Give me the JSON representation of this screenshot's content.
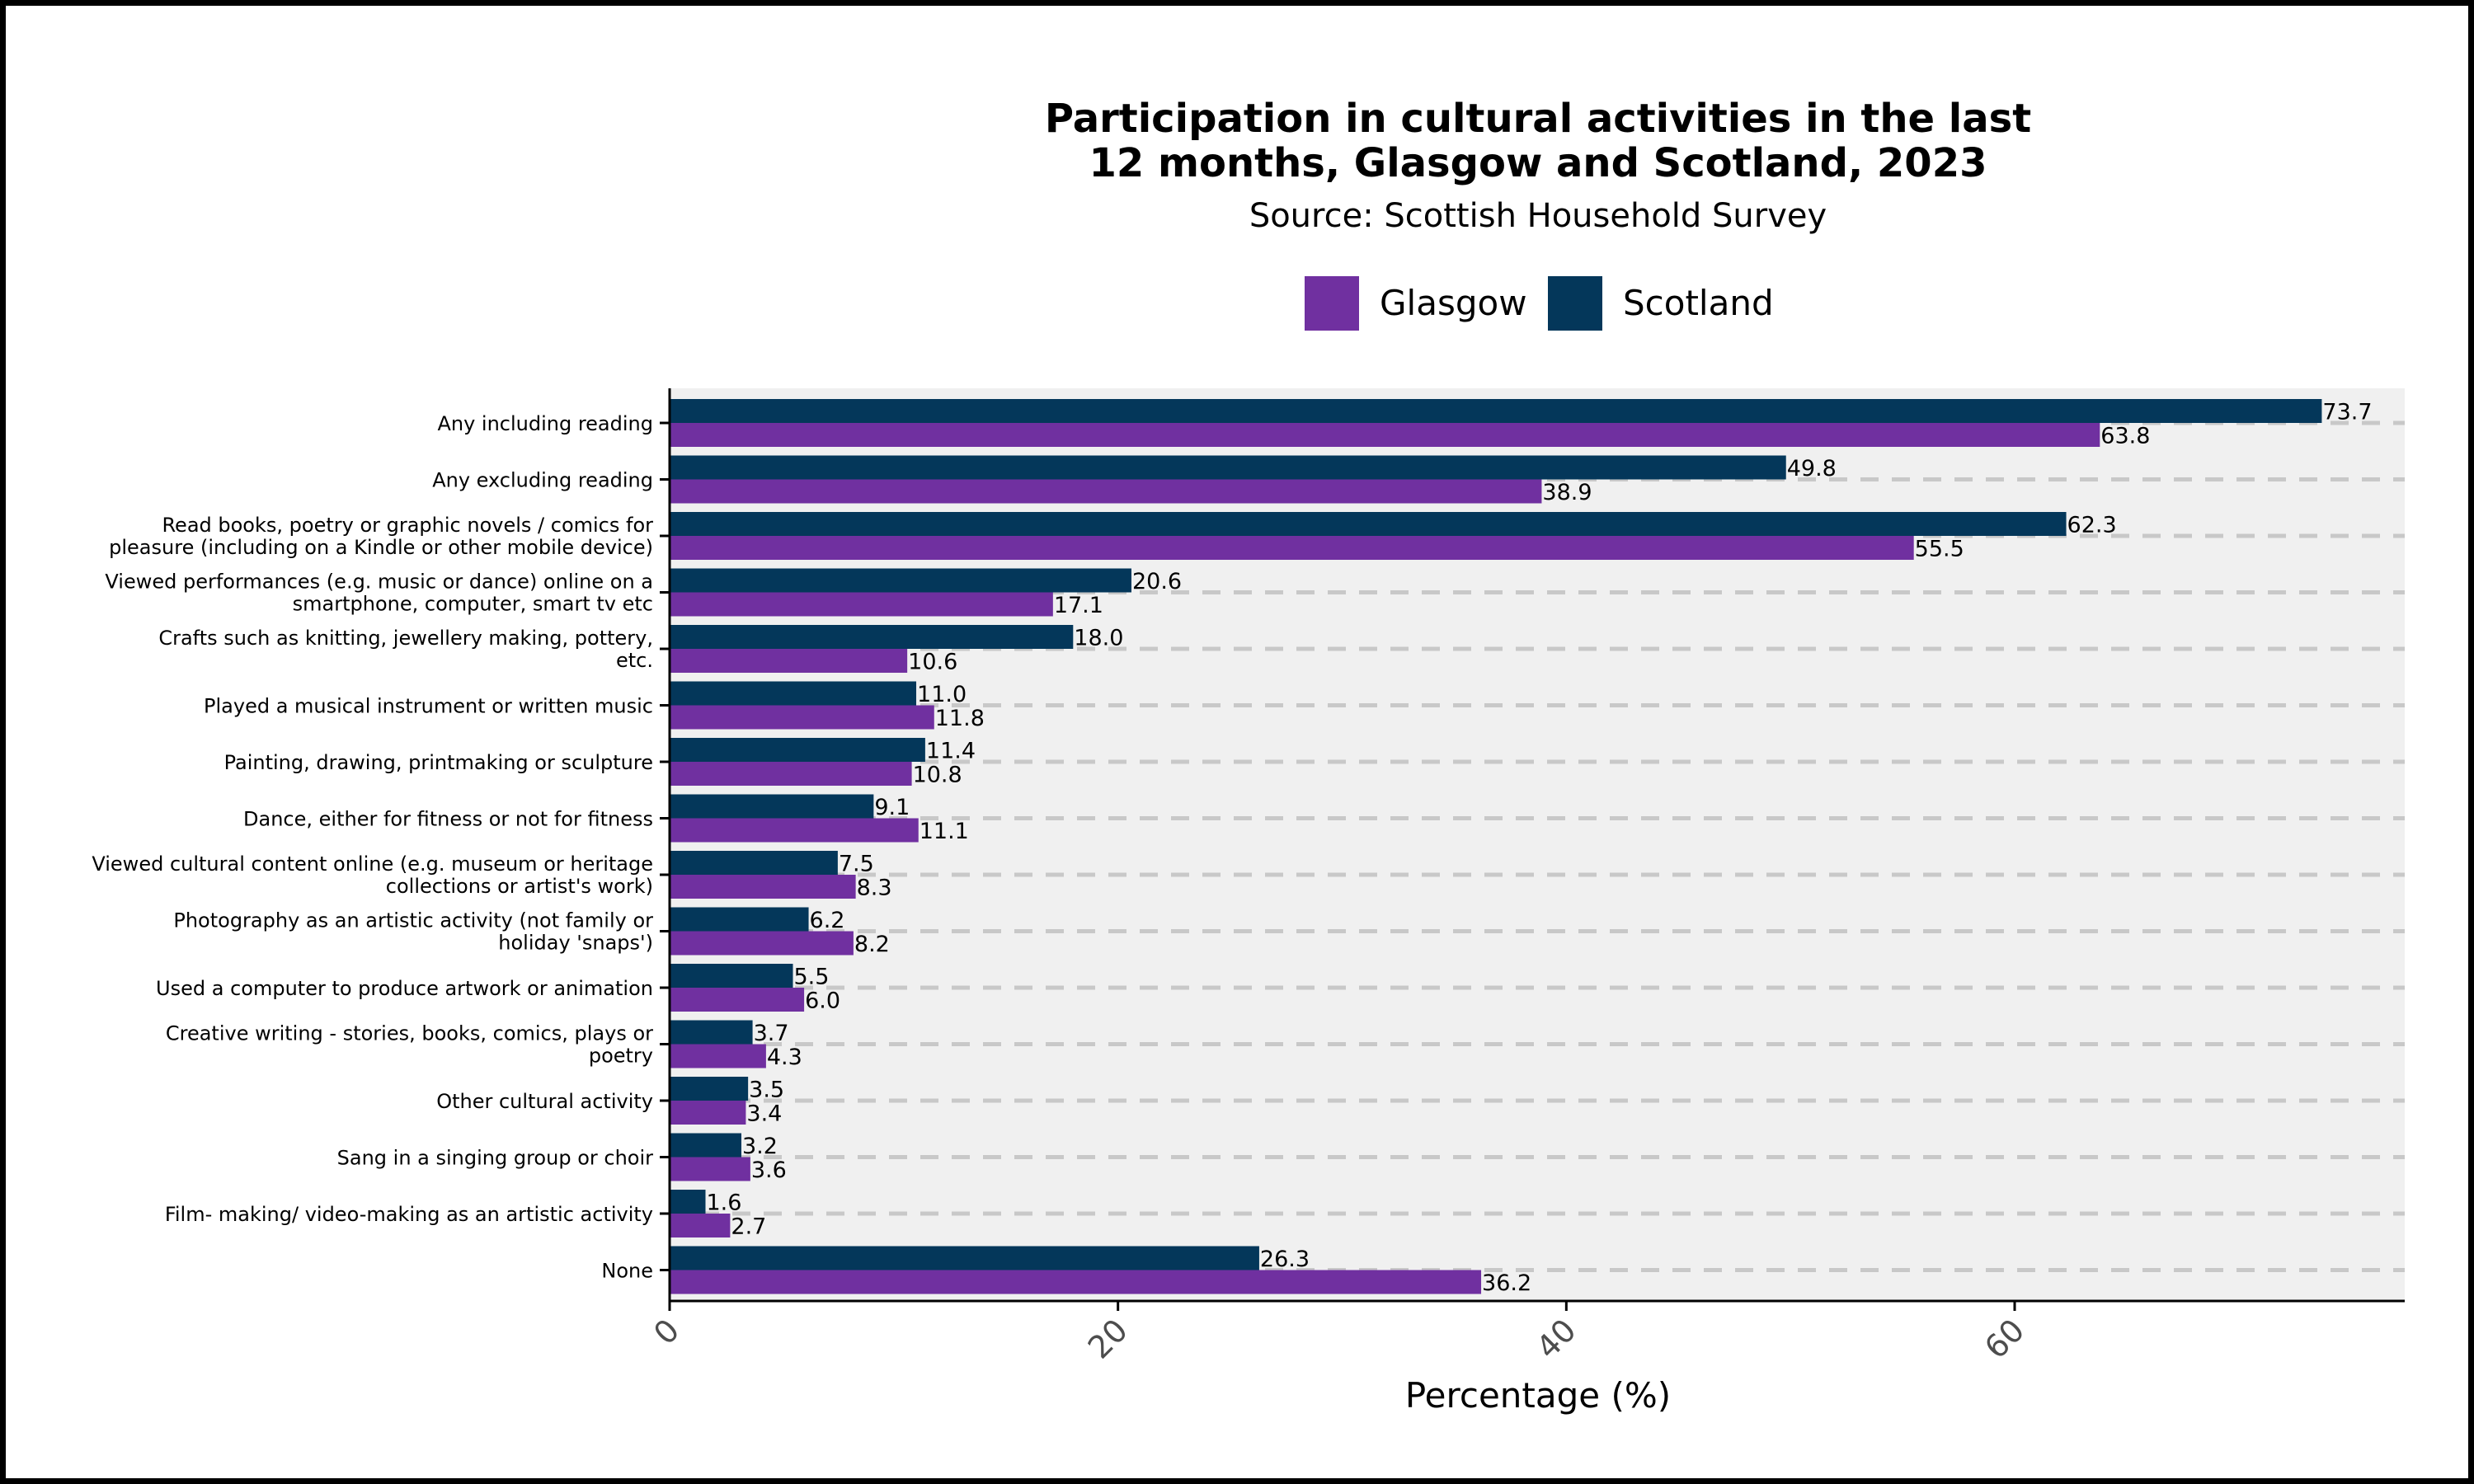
{
  "chart_data": {
    "type": "bar",
    "orientation": "horizontal",
    "title_lines": [
      "Participation in cultural activities in the last",
      "12 months, Glasgow and Scotland, 2023"
    ],
    "subtitle": "Source: Scottish Household Survey",
    "xlabel": "Percentage (%)",
    "ylabel": "",
    "xlim": [
      0,
      77.4
    ],
    "xticks": [
      0,
      20,
      40,
      60
    ],
    "grid": "dashed horizontal",
    "legend_position": "top",
    "categories": [
      [
        "Any including reading"
      ],
      [
        "Any excluding reading"
      ],
      [
        "Read books, poetry or graphic novels / comics for",
        "pleasure (including on a Kindle or other mobile device)"
      ],
      [
        "Viewed performances (e.g. music or dance) online on a",
        "smartphone, computer, smart tv etc"
      ],
      [
        "Crafts such as knitting, jewellery making, pottery,",
        "etc."
      ],
      [
        "Played a musical instrument or written music"
      ],
      [
        "Painting, drawing, printmaking or sculpture"
      ],
      [
        "Dance, either for fitness or not for fitness"
      ],
      [
        "Viewed cultural content online (e.g. museum or heritage",
        "collections or artist's work)"
      ],
      [
        "Photography as an artistic activity (not family or",
        "holiday 'snaps')"
      ],
      [
        "Used a computer to produce artwork or animation"
      ],
      [
        "Creative writing - stories, books, comics, plays or",
        "poetry"
      ],
      [
        "Other cultural activity"
      ],
      [
        "Sang in a singing group or choir"
      ],
      [
        "Film- making/ video-making as an artistic activity"
      ],
      [
        "None"
      ]
    ],
    "series": [
      {
        "name": "Glasgow",
        "color": "#7030a0",
        "values": [
          63.8,
          38.9,
          55.5,
          17.1,
          10.6,
          11.8,
          10.8,
          11.1,
          8.3,
          8.2,
          6.0,
          4.3,
          3.4,
          3.6,
          2.7,
          36.2
        ],
        "labels": [
          "63.8",
          "38.9",
          "55.5",
          "17.1",
          "10.6",
          "11.8",
          "10.8",
          "11.1",
          "8.3",
          "8.2",
          "6.0",
          "4.3",
          "3.4",
          "3.6",
          "2.7",
          "36.2"
        ]
      },
      {
        "name": "Scotland",
        "color": "#04375a",
        "values": [
          73.7,
          49.8,
          62.3,
          20.6,
          18.0,
          11.0,
          11.4,
          9.1,
          7.5,
          6.2,
          5.5,
          3.7,
          3.5,
          3.2,
          1.6,
          26.3
        ],
        "labels": [
          "73.7",
          "49.8",
          "62.3",
          "20.6",
          "18.0",
          "11.0",
          "11.4",
          "9.1",
          "7.5",
          "6.2",
          "5.5",
          "3.7",
          "3.5",
          "3.2",
          "1.6",
          "26.3"
        ]
      }
    ],
    "colors": {
      "panel_background": "#f0f0f0",
      "gridline": "#c8c8c8",
      "axis": "#000000",
      "tick_label": "#4d4d4d"
    }
  }
}
